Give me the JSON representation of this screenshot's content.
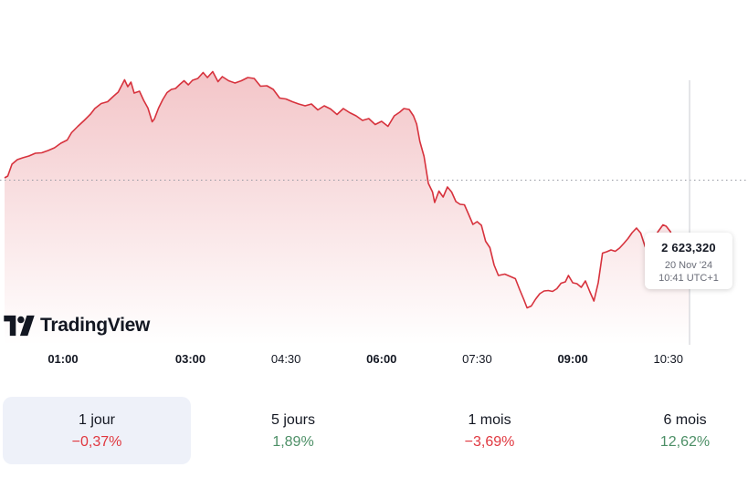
{
  "colors": {
    "line": "#d7323d",
    "fill_top": "#f3c5c8",
    "fill_bottom": "#ffffff",
    "negative": "#e0373f",
    "positive": "#4c8f66",
    "active_tab_bg": "#eef1f9"
  },
  "logo": {
    "text": "TradingView",
    "icon": "tradingview-logo-icon"
  },
  "tooltip": {
    "value": "2 623,320",
    "date": "20 Nov '24",
    "time": "10:41 UTC+1"
  },
  "tabs": [
    {
      "label": "1 jour",
      "change": "−0,37%",
      "sign": "neg",
      "active": true
    },
    {
      "label": "5 jours",
      "change": "1,89%",
      "sign": "pos",
      "active": false
    },
    {
      "label": "1 mois",
      "change": "−3,69%",
      "sign": "neg",
      "active": false
    },
    {
      "label": "6 mois",
      "change": "12,62%",
      "sign": "pos",
      "active": false
    }
  ],
  "chart_data": {
    "type": "area",
    "title": "",
    "xlabel": "",
    "ylabel": "",
    "x_ticks": [
      {
        "label": "01:00",
        "t": 60,
        "bold": true
      },
      {
        "label": "03:00",
        "t": 180,
        "bold": true
      },
      {
        "label": "04:30",
        "t": 270,
        "bold": false
      },
      {
        "label": "06:00",
        "t": 360,
        "bold": true
      },
      {
        "label": "07:30",
        "t": 450,
        "bold": false
      },
      {
        "label": "09:00",
        "t": 540,
        "bold": true
      },
      {
        "label": "10:30",
        "t": 630,
        "bold": false
      }
    ],
    "x_range_minutes": [
      5,
      650
    ],
    "y_range": [
      2600,
      2665
    ],
    "previous_close": 2637.5,
    "grid": false,
    "last_point": {
      "time": "10:41",
      "value": 2623.32
    },
    "points": [
      [
        5,
        2638.0
      ],
      [
        8,
        2638.4
      ],
      [
        12,
        2641.0
      ],
      [
        17,
        2642.0
      ],
      [
        22,
        2642.4
      ],
      [
        28,
        2642.8
      ],
      [
        34,
        2643.4
      ],
      [
        40,
        2643.5
      ],
      [
        46,
        2644.0
      ],
      [
        52,
        2644.6
      ],
      [
        58,
        2645.6
      ],
      [
        64,
        2646.3
      ],
      [
        68,
        2647.9
      ],
      [
        74,
        2649.3
      ],
      [
        80,
        2650.6
      ],
      [
        86,
        2652.0
      ],
      [
        90,
        2653.2
      ],
      [
        96,
        2654.3
      ],
      [
        102,
        2654.7
      ],
      [
        108,
        2656.0
      ],
      [
        112,
        2656.8
      ],
      [
        118,
        2659.5
      ],
      [
        121,
        2658.0
      ],
      [
        124,
        2659.0
      ],
      [
        127,
        2656.6
      ],
      [
        132,
        2657.0
      ],
      [
        136,
        2655.0
      ],
      [
        140,
        2653.3
      ],
      [
        144,
        2650.3
      ],
      [
        146,
        2650.9
      ],
      [
        150,
        2653.3
      ],
      [
        154,
        2655.2
      ],
      [
        158,
        2656.7
      ],
      [
        162,
        2657.4
      ],
      [
        166,
        2657.6
      ],
      [
        170,
        2658.5
      ],
      [
        174,
        2659.3
      ],
      [
        178,
        2658.4
      ],
      [
        182,
        2659.4
      ],
      [
        187,
        2659.8
      ],
      [
        192,
        2661.1
      ],
      [
        196,
        2660.0
      ],
      [
        201,
        2661.3
      ],
      [
        206,
        2659.1
      ],
      [
        210,
        2660.2
      ],
      [
        216,
        2659.3
      ],
      [
        222,
        2658.8
      ],
      [
        228,
        2659.3
      ],
      [
        234,
        2660.0
      ],
      [
        240,
        2659.8
      ],
      [
        246,
        2658.1
      ],
      [
        252,
        2658.2
      ],
      [
        258,
        2657.4
      ],
      [
        264,
        2655.5
      ],
      [
        270,
        2655.3
      ],
      [
        276,
        2654.7
      ],
      [
        282,
        2654.2
      ],
      [
        288,
        2653.8
      ],
      [
        294,
        2654.2
      ],
      [
        300,
        2652.9
      ],
      [
        306,
        2653.8
      ],
      [
        312,
        2653.1
      ],
      [
        318,
        2651.9
      ],
      [
        324,
        2653.2
      ],
      [
        330,
        2652.3
      ],
      [
        336,
        2651.6
      ],
      [
        342,
        2650.6
      ],
      [
        348,
        2651.0
      ],
      [
        354,
        2649.7
      ],
      [
        360,
        2650.4
      ],
      [
        366,
        2649.3
      ],
      [
        372,
        2651.6
      ],
      [
        377,
        2652.4
      ],
      [
        381,
        2653.2
      ],
      [
        386,
        2653.0
      ],
      [
        390,
        2651.6
      ],
      [
        393,
        2649.8
      ],
      [
        396,
        2646.0
      ],
      [
        400,
        2642.7
      ],
      [
        404,
        2636.8
      ],
      [
        408,
        2634.9
      ],
      [
        410,
        2632.6
      ],
      [
        414,
        2635.1
      ],
      [
        418,
        2633.8
      ],
      [
        422,
        2636.0
      ],
      [
        426,
        2634.9
      ],
      [
        430,
        2632.8
      ],
      [
        434,
        2632.2
      ],
      [
        438,
        2632.1
      ],
      [
        442,
        2630.0
      ],
      [
        446,
        2627.8
      ],
      [
        450,
        2628.4
      ],
      [
        454,
        2627.6
      ],
      [
        458,
        2624.1
      ],
      [
        462,
        2622.7
      ],
      [
        466,
        2618.9
      ],
      [
        470,
        2616.6
      ],
      [
        476,
        2616.9
      ],
      [
        482,
        2616.3
      ],
      [
        486,
        2615.9
      ],
      [
        490,
        2613.5
      ],
      [
        494,
        2611.3
      ],
      [
        497,
        2609.5
      ],
      [
        501,
        2609.9
      ],
      [
        505,
        2611.4
      ],
      [
        509,
        2612.6
      ],
      [
        513,
        2613.2
      ],
      [
        517,
        2613.3
      ],
      [
        521,
        2613.1
      ],
      [
        525,
        2613.7
      ],
      [
        529,
        2614.9
      ],
      [
        533,
        2615.2
      ],
      [
        536,
        2616.6
      ],
      [
        540,
        2615.0
      ],
      [
        544,
        2614.8
      ],
      [
        548,
        2614.0
      ],
      [
        552,
        2615.4
      ],
      [
        556,
        2613.1
      ],
      [
        560,
        2611.0
      ],
      [
        564,
        2615.0
      ],
      [
        568,
        2621.5
      ],
      [
        572,
        2621.8
      ],
      [
        576,
        2622.2
      ],
      [
        580,
        2621.9
      ],
      [
        584,
        2622.6
      ],
      [
        588,
        2623.6
      ],
      [
        592,
        2624.7
      ],
      [
        596,
        2626.0
      ],
      [
        600,
        2627.0
      ],
      [
        604,
        2625.9
      ],
      [
        608,
        2623.0
      ],
      [
        612,
        2621.2
      ],
      [
        616,
        2624.1
      ],
      [
        620,
        2626.1
      ],
      [
        625,
        2627.7
      ],
      [
        628,
        2627.4
      ],
      [
        632,
        2626.2
      ],
      [
        636,
        2623.0
      ],
      [
        640,
        2622.0
      ],
      [
        644,
        2621.6
      ],
      [
        648,
        2623.3
      ],
      [
        650,
        2623.32
      ]
    ]
  }
}
